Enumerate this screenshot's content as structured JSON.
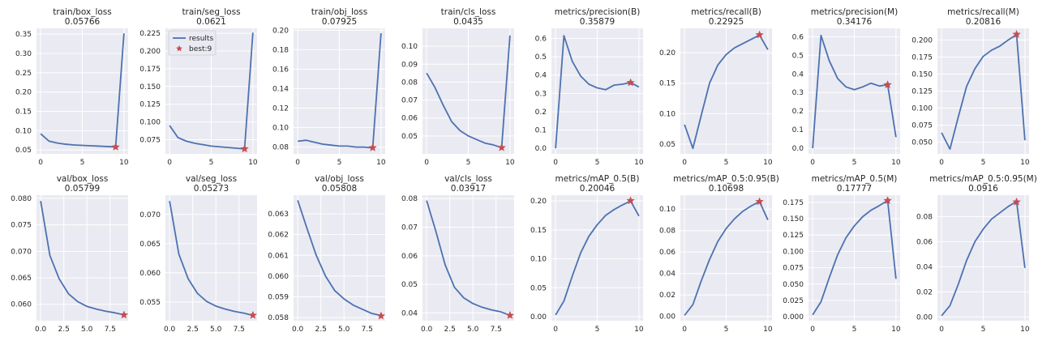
{
  "colors": {
    "plot_bg": "#eaeaf2",
    "grid": "#ffffff",
    "line": "#4c72b0",
    "best_marker": "#c44e52"
  },
  "chart_data": [
    {
      "type": "line",
      "title": "train/box_loss",
      "value": "0.05766",
      "x": [
        0,
        1,
        2,
        3,
        4,
        5,
        6,
        7,
        8,
        9,
        10
      ],
      "series": [
        {
          "name": "results",
          "values": [
            0.092,
            0.073,
            0.068,
            0.065,
            0.063,
            0.062,
            0.061,
            0.06,
            0.059,
            0.058,
            0.352
          ]
        }
      ],
      "best": {
        "x": 9,
        "y": 0.0577
      },
      "xlim": [
        -0.5,
        10.5
      ],
      "ylim": [
        0.04,
        0.365
      ],
      "xticks": [
        0,
        5,
        10
      ],
      "xtick_labels": [
        "0",
        "5",
        "10"
      ],
      "yticks": [
        0.05,
        0.1,
        0.15,
        0.2,
        0.25,
        0.3,
        0.35
      ],
      "ytick_labels": [
        "0.05",
        "0.10",
        "0.15",
        "0.20",
        "0.25",
        "0.30",
        "0.35"
      ],
      "grid": true
    },
    {
      "type": "line",
      "title": "train/seg_loss",
      "value": "0.0621",
      "x": [
        0,
        1,
        2,
        3,
        4,
        5,
        6,
        7,
        8,
        9,
        10
      ],
      "series": [
        {
          "name": "results",
          "values": [
            0.095,
            0.078,
            0.073,
            0.07,
            0.068,
            0.066,
            0.065,
            0.064,
            0.063,
            0.062,
            0.226
          ]
        }
      ],
      "best": {
        "x": 9,
        "y": 0.0621
      },
      "xlim": [
        -0.5,
        10.5
      ],
      "ylim": [
        0.055,
        0.232
      ],
      "xticks": [
        0,
        5,
        10
      ],
      "xtick_labels": [
        "0",
        "5",
        "10"
      ],
      "yticks": [
        0.075,
        0.1,
        0.125,
        0.15,
        0.175,
        0.2,
        0.225
      ],
      "ytick_labels": [
        "0.075",
        "0.100",
        "0.125",
        "0.150",
        "0.175",
        "0.200",
        "0.225"
      ],
      "grid": true,
      "legend": {
        "entries": [
          "results",
          "best:9"
        ],
        "position": "top-left"
      }
    },
    {
      "type": "line",
      "title": "train/obj_loss",
      "value": "0.07925",
      "x": [
        0,
        1,
        2,
        3,
        4,
        5,
        6,
        7,
        8,
        9,
        10
      ],
      "series": [
        {
          "name": "results",
          "values": [
            0.086,
            0.087,
            0.085,
            0.083,
            0.082,
            0.081,
            0.081,
            0.08,
            0.08,
            0.079,
            0.197
          ]
        }
      ],
      "best": {
        "x": 9,
        "y": 0.0793
      },
      "xlim": [
        -0.5,
        10.5
      ],
      "ylim": [
        0.073,
        0.202
      ],
      "xticks": [
        0,
        5,
        10
      ],
      "xtick_labels": [
        "0",
        "5",
        "10"
      ],
      "yticks": [
        0.08,
        0.1,
        0.12,
        0.14,
        0.16,
        0.18,
        0.2
      ],
      "ytick_labels": [
        "0.08",
        "0.10",
        "0.12",
        "0.14",
        "0.16",
        "0.18",
        "0.20"
      ],
      "grid": true
    },
    {
      "type": "line",
      "title": "train/cls_loss",
      "value": "0.0435",
      "x": [
        0,
        1,
        2,
        3,
        4,
        5,
        6,
        7,
        8,
        9,
        10
      ],
      "series": [
        {
          "name": "results",
          "values": [
            0.085,
            0.077,
            0.067,
            0.058,
            0.053,
            0.05,
            0.048,
            0.046,
            0.045,
            0.0435,
            0.106
          ]
        }
      ],
      "best": {
        "x": 9,
        "y": 0.0435
      },
      "xlim": [
        -0.5,
        10.5
      ],
      "ylim": [
        0.04,
        0.11
      ],
      "xticks": [
        0,
        5,
        10
      ],
      "xtick_labels": [
        "0",
        "5",
        "10"
      ],
      "yticks": [
        0.05,
        0.06,
        0.07,
        0.08,
        0.09,
        0.1
      ],
      "ytick_labels": [
        "0.05",
        "0.06",
        "0.07",
        "0.08",
        "0.09",
        "0.10"
      ],
      "grid": true
    },
    {
      "type": "line",
      "title": "metrics/precision(B)",
      "value": "0.35879",
      "x": [
        0,
        1,
        2,
        3,
        4,
        5,
        6,
        7,
        8,
        9,
        10
      ],
      "series": [
        {
          "name": "results",
          "values": [
            0.0,
            0.615,
            0.475,
            0.395,
            0.35,
            0.33,
            0.32,
            0.345,
            0.35,
            0.359,
            0.335
          ]
        }
      ],
      "best": {
        "x": 9,
        "y": 0.3588
      },
      "xlim": [
        -0.5,
        10.5
      ],
      "ylim": [
        -0.03,
        0.655
      ],
      "xticks": [
        0,
        5,
        10
      ],
      "xtick_labels": [
        "0",
        "5",
        "10"
      ],
      "yticks": [
        0.0,
        0.1,
        0.2,
        0.3,
        0.4,
        0.5,
        0.6
      ],
      "ytick_labels": [
        "0.0",
        "0.1",
        "0.2",
        "0.3",
        "0.4",
        "0.5",
        "0.6"
      ],
      "grid": true
    },
    {
      "type": "line",
      "title": "metrics/recall(B)",
      "value": "0.22925",
      "x": [
        0,
        1,
        2,
        3,
        4,
        5,
        6,
        7,
        8,
        9,
        10
      ],
      "series": [
        {
          "name": "results",
          "values": [
            0.082,
            0.043,
            0.097,
            0.15,
            0.18,
            0.197,
            0.208,
            0.215,
            0.222,
            0.229,
            0.205
          ]
        }
      ],
      "best": {
        "x": 9,
        "y": 0.2293
      },
      "xlim": [
        -0.5,
        10.5
      ],
      "ylim": [
        0.034,
        0.24
      ],
      "xticks": [
        0,
        5,
        10
      ],
      "xtick_labels": [
        "0",
        "5",
        "10"
      ],
      "yticks": [
        0.05,
        0.1,
        0.15,
        0.2
      ],
      "ytick_labels": [
        "0.05",
        "0.10",
        "0.15",
        "0.20"
      ],
      "grid": true
    },
    {
      "type": "line",
      "title": "metrics/precision(M)",
      "value": "0.34176",
      "x": [
        0,
        1,
        2,
        3,
        4,
        5,
        6,
        7,
        8,
        9,
        10
      ],
      "series": [
        {
          "name": "results",
          "values": [
            0.0,
            0.607,
            0.47,
            0.375,
            0.33,
            0.315,
            0.33,
            0.35,
            0.335,
            0.342,
            0.06
          ]
        }
      ],
      "best": {
        "x": 9,
        "y": 0.3418
      },
      "xlim": [
        -0.5,
        10.5
      ],
      "ylim": [
        -0.03,
        0.645
      ],
      "xticks": [
        0,
        5,
        10
      ],
      "xtick_labels": [
        "0",
        "5",
        "10"
      ],
      "yticks": [
        0.0,
        0.1,
        0.2,
        0.3,
        0.4,
        0.5,
        0.6
      ],
      "ytick_labels": [
        "0.0",
        "0.1",
        "0.2",
        "0.3",
        "0.4",
        "0.5",
        "0.6"
      ],
      "grid": true
    },
    {
      "type": "line",
      "title": "metrics/recall(M)",
      "value": "0.20816",
      "x": [
        0,
        1,
        2,
        3,
        4,
        5,
        6,
        7,
        8,
        9,
        10
      ],
      "series": [
        {
          "name": "results",
          "values": [
            0.064,
            0.04,
            0.087,
            0.132,
            0.158,
            0.176,
            0.185,
            0.191,
            0.2,
            0.208,
            0.053
          ]
        }
      ],
      "best": {
        "x": 9,
        "y": 0.2082
      },
      "xlim": [
        -0.5,
        10.5
      ],
      "ylim": [
        0.033,
        0.217
      ],
      "xticks": [
        0,
        5,
        10
      ],
      "xtick_labels": [
        "0",
        "5",
        "10"
      ],
      "yticks": [
        0.05,
        0.075,
        0.1,
        0.125,
        0.15,
        0.175,
        0.2
      ],
      "ytick_labels": [
        "0.050",
        "0.075",
        "0.100",
        "0.125",
        "0.150",
        "0.175",
        "0.200"
      ],
      "grid": true
    },
    {
      "type": "line",
      "title": "val/box_loss",
      "value": "0.05799",
      "x": [
        0,
        1,
        2,
        3,
        4,
        5,
        6,
        7,
        8,
        9
      ],
      "series": [
        {
          "name": "results",
          "values": [
            0.0795,
            0.0692,
            0.0648,
            0.062,
            0.0605,
            0.0596,
            0.0591,
            0.0587,
            0.0584,
            0.058
          ]
        }
      ],
      "best": {
        "x": 9,
        "y": 0.05799
      },
      "xlim": [
        -0.45,
        9.45
      ],
      "ylim": [
        0.0569,
        0.0806
      ],
      "xticks": [
        0,
        2.5,
        5,
        7.5
      ],
      "xtick_labels": [
        "0.0",
        "2.5",
        "5.0",
        "7.5"
      ],
      "yticks": [
        0.06,
        0.065,
        0.07,
        0.075,
        0.08
      ],
      "ytick_labels": [
        "0.060",
        "0.065",
        "0.070",
        "0.075",
        "0.080"
      ],
      "grid": true
    },
    {
      "type": "line",
      "title": "val/seg_loss",
      "value": "0.05273",
      "x": [
        0,
        1,
        2,
        3,
        4,
        5,
        6,
        7,
        8,
        9
      ],
      "series": [
        {
          "name": "results",
          "values": [
            0.0723,
            0.0632,
            0.059,
            0.0565,
            0.0551,
            0.0543,
            0.0538,
            0.0534,
            0.0531,
            0.0527
          ]
        }
      ],
      "best": {
        "x": 9,
        "y": 0.05273
      },
      "xlim": [
        -0.45,
        9.45
      ],
      "ylim": [
        0.0518,
        0.0733
      ],
      "xticks": [
        0,
        2.5,
        5,
        7.5
      ],
      "xtick_labels": [
        "0.0",
        "2.5",
        "5.0",
        "7.5"
      ],
      "yticks": [
        0.055,
        0.06,
        0.065,
        0.07
      ],
      "ytick_labels": [
        "0.055",
        "0.060",
        "0.065",
        "0.070"
      ],
      "grid": true
    },
    {
      "type": "line",
      "title": "val/obj_loss",
      "value": "0.05808",
      "x": [
        0,
        1,
        2,
        3,
        4,
        5,
        6,
        7,
        8,
        9
      ],
      "series": [
        {
          "name": "results",
          "values": [
            0.06365,
            0.0623,
            0.061,
            0.06,
            0.0593,
            0.0589,
            0.0586,
            0.0584,
            0.0582,
            0.0581
          ]
        }
      ],
      "best": {
        "x": 9,
        "y": 0.05808
      },
      "xlim": [
        -0.45,
        9.45
      ],
      "ylim": [
        0.05785,
        0.0639
      ],
      "xticks": [
        0,
        2.5,
        5,
        7.5
      ],
      "xtick_labels": [
        "0.0",
        "2.5",
        "5.0",
        "7.5"
      ],
      "yticks": [
        0.058,
        0.059,
        0.06,
        0.061,
        0.062,
        0.063
      ],
      "ytick_labels": [
        "0.058",
        "0.059",
        "0.060",
        "0.061",
        "0.062",
        "0.063"
      ],
      "grid": true
    },
    {
      "type": "line",
      "title": "val/cls_loss",
      "value": "0.03917",
      "x": [
        0,
        1,
        2,
        3,
        4,
        5,
        6,
        7,
        8,
        9
      ],
      "series": [
        {
          "name": "results",
          "values": [
            0.0793,
            0.0685,
            0.0568,
            0.049,
            0.0453,
            0.0433,
            0.042,
            0.0411,
            0.0404,
            0.0392
          ]
        }
      ],
      "best": {
        "x": 9,
        "y": 0.03917
      },
      "xlim": [
        -0.45,
        9.45
      ],
      "ylim": [
        0.0373,
        0.0812
      ],
      "xticks": [
        0,
        2.5,
        5,
        7.5
      ],
      "xtick_labels": [
        "0.0",
        "2.5",
        "5.0",
        "7.5"
      ],
      "yticks": [
        0.04,
        0.05,
        0.06,
        0.07,
        0.08
      ],
      "ytick_labels": [
        "0.04",
        "0.05",
        "0.06",
        "0.07",
        "0.08"
      ],
      "grid": true
    },
    {
      "type": "line",
      "title": "metrics/mAP_0.5(B)",
      "value": "0.20046",
      "x": [
        0,
        1,
        2,
        3,
        4,
        5,
        6,
        7,
        8,
        9,
        10
      ],
      "series": [
        {
          "name": "results",
          "values": [
            0.003,
            0.027,
            0.07,
            0.11,
            0.139,
            0.159,
            0.175,
            0.185,
            0.193,
            0.2,
            0.174
          ]
        }
      ],
      "best": {
        "x": 9,
        "y": 0.2005
      },
      "xlim": [
        -0.5,
        10.5
      ],
      "ylim": [
        -0.007,
        0.21
      ],
      "xticks": [
        0,
        5,
        10
      ],
      "xtick_labels": [
        "0",
        "5",
        "10"
      ],
      "yticks": [
        0.0,
        0.05,
        0.1,
        0.15,
        0.2
      ],
      "ytick_labels": [
        "0.00",
        "0.05",
        "0.10",
        "0.15",
        "0.20"
      ],
      "grid": true
    },
    {
      "type": "line",
      "title": "metrics/mAP_0.5:0.95(B)",
      "value": "0.10698",
      "x": [
        0,
        1,
        2,
        3,
        4,
        5,
        6,
        7,
        8,
        9,
        10
      ],
      "series": [
        {
          "name": "results",
          "values": [
            0.001,
            0.011,
            0.033,
            0.053,
            0.07,
            0.082,
            0.091,
            0.098,
            0.103,
            0.107,
            0.09
          ]
        }
      ],
      "best": {
        "x": 9,
        "y": 0.107
      },
      "xlim": [
        -0.5,
        10.5
      ],
      "ylim": [
        -0.004,
        0.113
      ],
      "xticks": [
        0,
        5,
        10
      ],
      "xtick_labels": [
        "0",
        "5",
        "10"
      ],
      "yticks": [
        0.0,
        0.02,
        0.04,
        0.06,
        0.08,
        0.1
      ],
      "ytick_labels": [
        "0.00",
        "0.02",
        "0.04",
        "0.06",
        "0.08",
        "0.10"
      ],
      "grid": true
    },
    {
      "type": "line",
      "title": "metrics/mAP_0.5(M)",
      "value": "0.17777",
      "x": [
        0,
        1,
        2,
        3,
        4,
        5,
        6,
        7,
        8,
        9,
        10
      ],
      "series": [
        {
          "name": "results",
          "values": [
            0.003,
            0.023,
            0.06,
            0.095,
            0.121,
            0.139,
            0.153,
            0.163,
            0.17,
            0.178,
            0.058
          ]
        }
      ],
      "best": {
        "x": 9,
        "y": 0.1778
      },
      "xlim": [
        -0.5,
        10.5
      ],
      "ylim": [
        -0.006,
        0.186
      ],
      "xticks": [
        0,
        5,
        10
      ],
      "xtick_labels": [
        "0",
        "5",
        "10"
      ],
      "yticks": [
        0.0,
        0.025,
        0.05,
        0.075,
        0.1,
        0.125,
        0.15,
        0.175
      ],
      "ytick_labels": [
        "0.000",
        "0.025",
        "0.050",
        "0.075",
        "0.100",
        "0.125",
        "0.150",
        "0.175"
      ],
      "grid": true
    },
    {
      "type": "line",
      "title": "metrics/mAP_0.5:0.95(M)",
      "value": "0.0916",
      "x": [
        0,
        1,
        2,
        3,
        4,
        5,
        6,
        7,
        8,
        9,
        10
      ],
      "series": [
        {
          "name": "results",
          "values": [
            0.001,
            0.009,
            0.026,
            0.045,
            0.06,
            0.07,
            0.078,
            0.083,
            0.088,
            0.092,
            0.039
          ]
        }
      ],
      "best": {
        "x": 9,
        "y": 0.0916
      },
      "xlim": [
        -0.5,
        10.5
      ],
      "ylim": [
        -0.003,
        0.097
      ],
      "xticks": [
        0,
        5,
        10
      ],
      "xtick_labels": [
        "0",
        "5",
        "10"
      ],
      "yticks": [
        0.0,
        0.02,
        0.04,
        0.06,
        0.08
      ],
      "ytick_labels": [
        "0.00",
        "0.02",
        "0.04",
        "0.06",
        "0.08"
      ],
      "grid": true
    }
  ]
}
